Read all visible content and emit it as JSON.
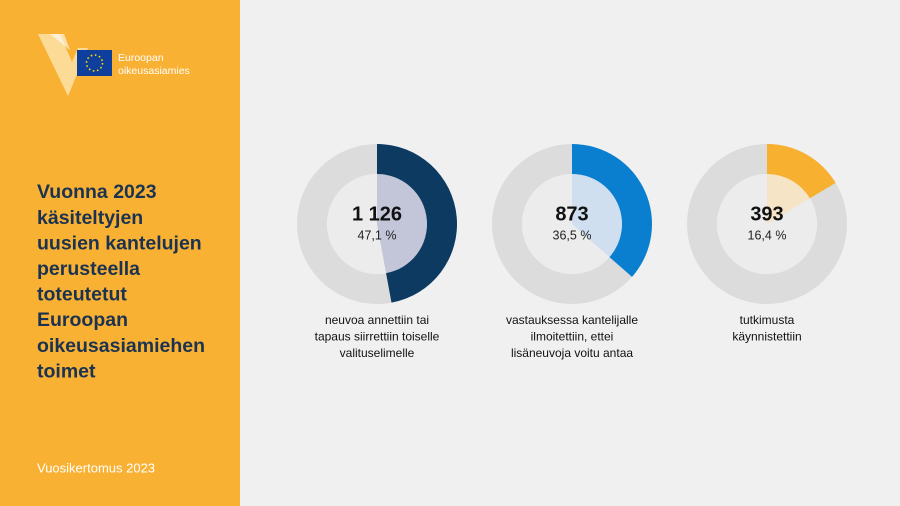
{
  "sidebar": {
    "logo_text": [
      "Euroopan",
      "oikeusasiamies"
    ],
    "title_lines": [
      "Vuonna 2023",
      "käsiteltyjen",
      "uusien kantelujen",
      "perusteella",
      "toteutetut",
      "Euroopan",
      "oikeusasiamiehen",
      "toimet"
    ],
    "footer": "Vuosikertomus 2023"
  },
  "chart_data": [
    {
      "type": "donut",
      "count": "1 126",
      "values": [
        47.1
      ],
      "value_labels": [
        "47,1 %"
      ],
      "color": "#0d3a61",
      "inner_color": "#c3c6d9",
      "caption_lines": [
        "neuvoa annettiin tai",
        "tapaus siirrettiin toiselle",
        "valituselimelle"
      ]
    },
    {
      "type": "donut",
      "count": "873",
      "values": [
        36.5
      ],
      "value_labels": [
        "36,5 %"
      ],
      "color": "#0a7fcf",
      "inner_color": "#cfdff0",
      "caption_lines": [
        "vastauksessa kantelijalle",
        "ilmoitettiin, ettei",
        "lisäneuvoja voitu antaa"
      ]
    },
    {
      "type": "donut",
      "count": "393",
      "values": [
        16.4
      ],
      "value_labels": [
        "16,4 %"
      ],
      "color": "#f7b02f",
      "inner_color": "#f6e4c6",
      "caption_lines": [
        "tutkimusta",
        "käynnistettiin"
      ]
    }
  ]
}
